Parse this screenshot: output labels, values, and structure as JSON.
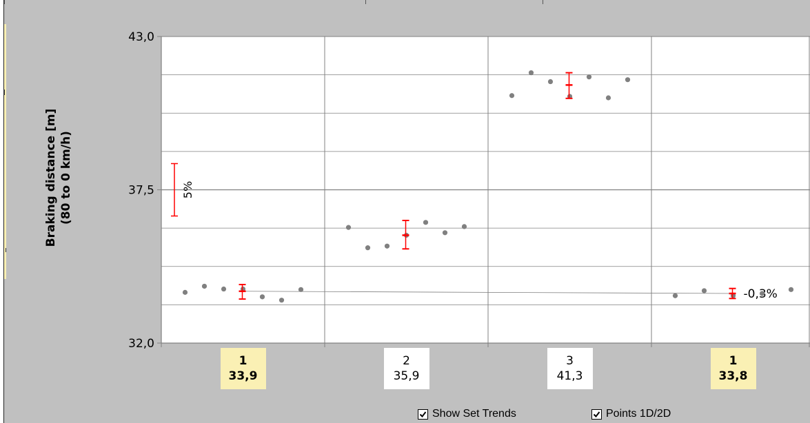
{
  "chart_data": {
    "type": "scatter",
    "ylabel_line1": "Braking distance [m]",
    "ylabel_line2": "(80 to 0 km/h)",
    "ylim": [
      32.0,
      43.0
    ],
    "yticks": [
      "43,0",
      "37,5",
      "32,0"
    ],
    "ytick_values": [
      43.0,
      37.5,
      32.0
    ],
    "grid": true,
    "categories": [
      {
        "set": "1",
        "mean": "33,9",
        "reference": true
      },
      {
        "set": "2",
        "mean": "35,9",
        "reference": false
      },
      {
        "set": "3",
        "mean": "41,3",
        "reference": false
      },
      {
        "set": "1",
        "mean": "33,8",
        "reference": true
      }
    ],
    "points": [
      [
        33.82,
        34.04,
        33.94,
        33.94,
        33.66,
        33.54,
        33.92
      ],
      [
        36.15,
        35.42,
        35.48,
        35.87,
        36.33,
        35.96,
        36.18
      ],
      [
        40.88,
        41.7,
        41.38,
        40.85,
        41.55,
        40.8,
        41.45
      ],
      [
        33.7,
        33.88,
        33.7,
        33.78,
        33.92
      ]
    ],
    "means": [
      33.86,
      35.87,
      41.26,
      33.78
    ],
    "error_bars": [
      {
        "low": 33.58,
        "high": 34.1
      },
      {
        "low": 35.38,
        "high": 36.4
      },
      {
        "low": 40.78,
        "high": 41.7
      },
      {
        "low": 33.6,
        "high": 33.96
      }
    ],
    "trend_line": {
      "from": 33.86,
      "to": 33.78,
      "label": "-0,3%"
    },
    "scale_bar": {
      "label": "5%",
      "low": 36.56,
      "high": 38.44
    }
  },
  "colors": {
    "plot_bg": "#ffffff",
    "frame_bg": "#c0c0c0",
    "grid": "#808080",
    "point": "#808080",
    "error": "#ff0000",
    "trend": "#808080",
    "ref_box": "#faf0b4"
  },
  "controls": {
    "show_set_trends": {
      "label": "Show Set Trends",
      "checked": true
    },
    "points_1d_2d": {
      "label": "Points 1D/2D",
      "checked": true
    }
  }
}
